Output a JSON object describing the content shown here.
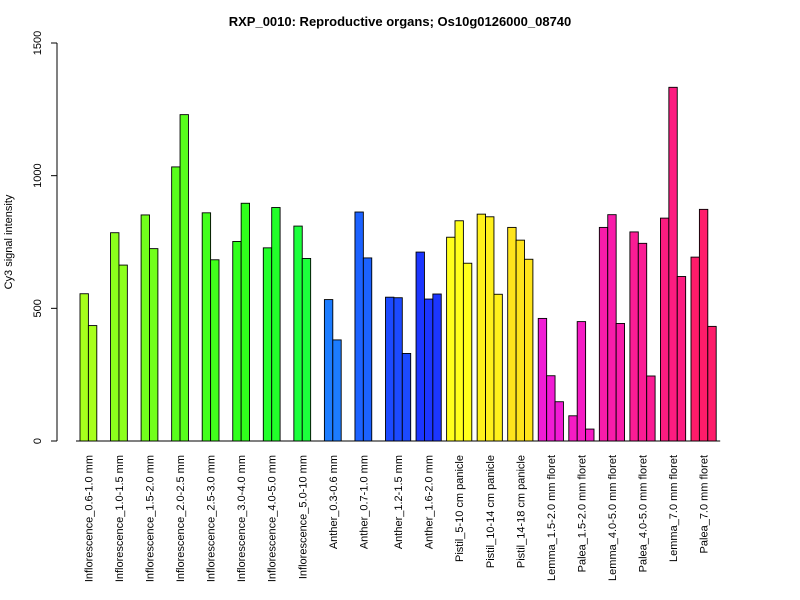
{
  "chart_data": {
    "type": "bar",
    "title": "RXP_0010: Reproductive organs; Os10g0126000_08740",
    "xlabel": "",
    "ylabel": "Cy3 signal intensity",
    "ylim": [
      0,
      1500
    ],
    "yticks": [
      0,
      500,
      1000,
      1500
    ],
    "grid": false,
    "legend": "none",
    "groups": [
      {
        "label": "Inflorescence_0.6-1.0 mm",
        "color": "#A6FF1C",
        "values": [
          555,
          435
        ]
      },
      {
        "label": "Inflorescence_1.0-1.5 mm",
        "color": "#8CFF1C",
        "values": [
          785,
          663
        ]
      },
      {
        "label": "Inflorescence_1.5-2.0 mm",
        "color": "#72FF1C",
        "values": [
          852,
          725
        ]
      },
      {
        "label": "Inflorescence_2.0-2.5 mm",
        "color": "#58FF1C",
        "values": [
          1033,
          1230
        ]
      },
      {
        "label": "Inflorescence_2.5-3.0 mm",
        "color": "#42FF1C",
        "values": [
          860,
          683
        ]
      },
      {
        "label": "Inflorescence_3.0-4.0 mm",
        "color": "#30FF1C",
        "values": [
          752,
          896
        ]
      },
      {
        "label": "Inflorescence_4.0-5.0 mm",
        "color": "#22FF2A",
        "values": [
          728,
          880
        ]
      },
      {
        "label": "Inflorescence_5.0-10 mm",
        "color": "#1CFF3C",
        "values": [
          810,
          688
        ]
      },
      {
        "label": "Anther_0.3-0.6 mm",
        "color": "#1C7CFF",
        "values": [
          533,
          381
        ]
      },
      {
        "label": "Anther_0.7-1.0 mm",
        "color": "#1C62FF",
        "values": [
          863,
          690
        ]
      },
      {
        "label": "Anther_1.2-1.5 mm",
        "color": "#1C4AFF",
        "values": [
          542,
          540,
          330
        ]
      },
      {
        "label": "Anther_1.6-2.0 mm",
        "color": "#1C36FF",
        "values": [
          712,
          535,
          554
        ]
      },
      {
        "label": "Pistil_5-10 cm panicle",
        "color": "#FFFF1C",
        "values": [
          768,
          830,
          670
        ]
      },
      {
        "label": "Pistil_10-14 cm panicle",
        "color": "#FFF01C",
        "values": [
          855,
          845,
          553
        ]
      },
      {
        "label": "Pistil_14-18 cm panicle",
        "color": "#FFE41C",
        "values": [
          805,
          757,
          685
        ]
      },
      {
        "label": "Lemma_1.5-2.0 mm floret",
        "color": "#F01CD4",
        "values": [
          462,
          246,
          148
        ]
      },
      {
        "label": "Palea_1.5-2.0 mm floret",
        "color": "#F51CC4",
        "values": [
          95,
          450,
          45
        ]
      },
      {
        "label": "Lemma_4.0-5.0 mm floret",
        "color": "#F81CAA",
        "values": [
          805,
          853,
          443
        ]
      },
      {
        "label": "Palea_4.0-5.0 mm floret",
        "color": "#FA1C94",
        "values": [
          788,
          745,
          245
        ]
      },
      {
        "label": "Lemma_7.0 mm floret",
        "color": "#FC1C80",
        "values": [
          840,
          1333,
          620
        ]
      },
      {
        "label": "Palea_7.0 mm floret",
        "color": "#FE1C6A",
        "values": [
          693,
          873,
          432
        ]
      }
    ]
  }
}
